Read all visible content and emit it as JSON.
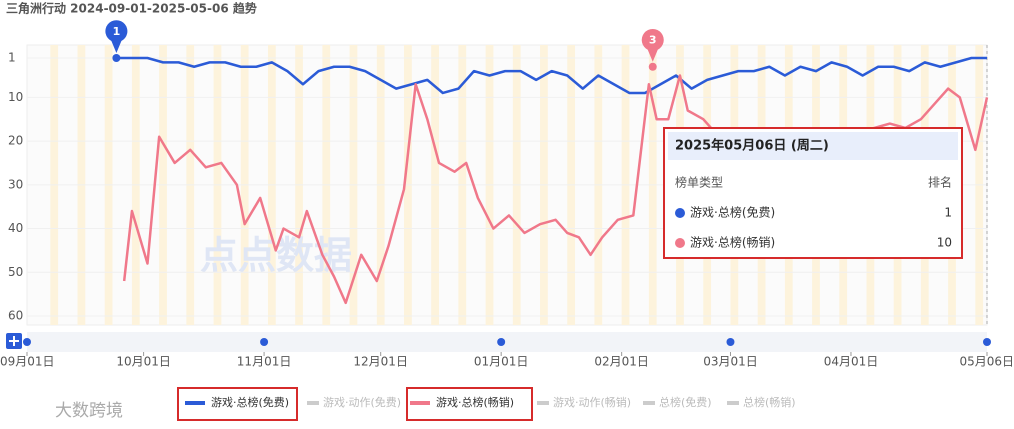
{
  "chart_data": {
    "type": "line",
    "title": "三角洲行动 2024-09-01-2025-05-06 趋势",
    "xlim": [
      0,
      247
    ],
    "xticks": [
      {
        "value": 0,
        "label": "09月01日"
      },
      {
        "value": 30,
        "label": "10月01日"
      },
      {
        "value": 61,
        "label": "11月01日"
      },
      {
        "value": 91,
        "label": "12月01日"
      },
      {
        "value": 122,
        "label": "01月01日"
      },
      {
        "value": 153,
        "label": "02月01日"
      },
      {
        "value": 181,
        "label": "03月01日"
      },
      {
        "value": 212,
        "label": "04月01日"
      },
      {
        "value": 247,
        "label": "05月06日"
      }
    ],
    "ylim": [
      1,
      60
    ],
    "y_inverted": true,
    "yticks": [
      1,
      10,
      20,
      30,
      40,
      50,
      60
    ],
    "series": [
      {
        "name": "游戏·总榜(免费)",
        "color": "#2b5bd7",
        "x": [
          23,
          27,
          31,
          35,
          39,
          43,
          47,
          51,
          55,
          59,
          63,
          67,
          71,
          75,
          79,
          83,
          87,
          91,
          95,
          99,
          103,
          107,
          111,
          115,
          119,
          123,
          127,
          131,
          135,
          139,
          143,
          147,
          151,
          155,
          159,
          163,
          167,
          171,
          175,
          179,
          183,
          187,
          191,
          195,
          199,
          203,
          207,
          211,
          215,
          219,
          223,
          227,
          231,
          235,
          239,
          243,
          247
        ],
        "values": [
          1,
          1,
          1,
          2,
          2,
          3,
          2,
          2,
          3,
          3,
          2,
          4,
          7,
          4,
          3,
          3,
          4,
          6,
          8,
          7,
          6,
          9,
          8,
          4,
          5,
          4,
          4,
          6,
          4,
          5,
          8,
          5,
          7,
          9,
          9,
          7,
          5,
          8,
          6,
          5,
          4,
          4,
          3,
          5,
          3,
          4,
          2,
          3,
          5,
          3,
          3,
          4,
          2,
          3,
          2,
          1,
          1
        ]
      },
      {
        "name": "游戏·总榜(畅销)",
        "color": "#f0788a",
        "x": [
          25,
          27,
          31,
          34,
          38,
          42,
          46,
          50,
          54,
          56,
          60,
          64,
          66,
          70,
          72,
          76,
          79,
          82,
          86,
          90,
          93,
          97,
          100,
          103,
          106,
          110,
          113,
          116,
          120,
          124,
          128,
          132,
          136,
          139,
          142,
          145,
          148,
          152,
          156,
          160,
          162,
          165,
          168,
          170,
          174,
          178,
          182,
          186,
          190,
          194,
          198,
          202,
          206,
          210,
          214,
          218,
          222,
          226,
          230,
          234,
          237,
          240,
          242,
          244,
          246,
          247
        ],
        "values": [
          52,
          36,
          48,
          19,
          25,
          22,
          26,
          25,
          30,
          39,
          33,
          45,
          40,
          42,
          36,
          46,
          51,
          57,
          46,
          52,
          44,
          31,
          7,
          15,
          25,
          27,
          25,
          33,
          40,
          37,
          41,
          39,
          38,
          41,
          42,
          46,
          42,
          38,
          37,
          7,
          15,
          15,
          5,
          13,
          15,
          19,
          21,
          20,
          22,
          21,
          19,
          20,
          20,
          19,
          18,
          17,
          16,
          17,
          15,
          11,
          8,
          10,
          16,
          22,
          14,
          10
        ]
      }
    ],
    "hidden_series": [
      "游戏·动作(免费)",
      "游戏·动作(畅销)",
      "总榜(免费)",
      "总榜(畅销)"
    ],
    "annotations": [
      {
        "label": "1",
        "x": 23,
        "y": 1,
        "series": 0
      },
      {
        "label": "3",
        "x": 161,
        "y": 3,
        "series": 1
      }
    ],
    "tooltip": {
      "title": "2025年05月06日 (周二)",
      "col1": "榜单类型",
      "col2": "排名"
    },
    "watermarks": [
      "点点数据",
      "大数跨境"
    ]
  }
}
